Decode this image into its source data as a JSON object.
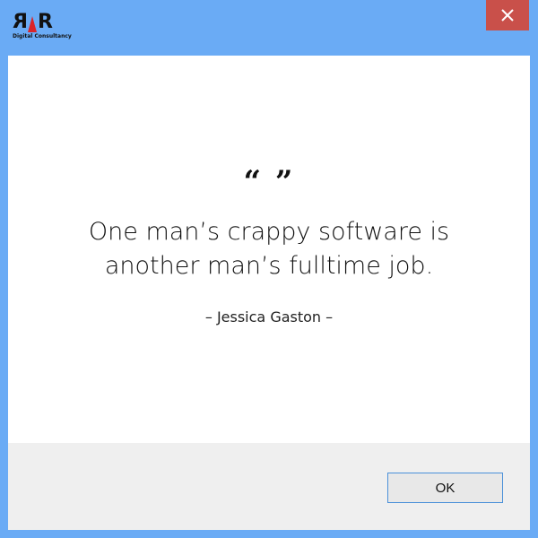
{
  "logo": {
    "letters": [
      "R",
      "R"
    ],
    "subtitle": "Digital Consultancy",
    "wedge_color": "#d9252a"
  },
  "titlebar": {
    "close_icon": "close-icon",
    "close_color": "#c9504a"
  },
  "quote": {
    "marks": "“ ”",
    "lines": [
      "One man’s crappy software is",
      "another man’s fulltime job."
    ],
    "author": "– Jessica Gaston –"
  },
  "footer": {
    "ok_label": "OK"
  },
  "colors": {
    "window_frame": "#6aabf5",
    "content_bg": "#ffffff",
    "footer_bg": "#efefef",
    "button_border": "#4a90d9"
  }
}
